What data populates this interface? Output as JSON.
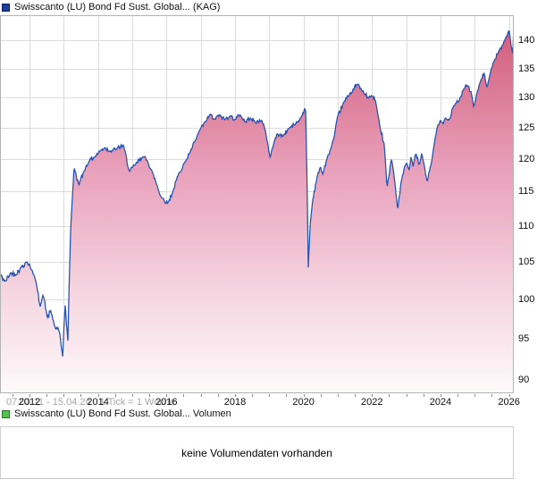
{
  "price_chart": {
    "legend": {
      "label": "Swisscanto (LU) Bond Fd Sust. Global... (KAG)",
      "swatch_fill": "#1d3a9e",
      "swatch_border": "#0c1e66"
    },
    "range_label": "07.03.11 - 15.04.26",
    "tick_label": "1 Tick = 1 Woche"
  },
  "volume_chart": {
    "legend": {
      "label": "Swisscanto (LU) Bond Fd Sust. Global... Volumen",
      "swatch_fill": "#54bf50",
      "swatch_border": "#1f7d23"
    },
    "message": "keine Volumendaten vorhanden"
  },
  "chart_data": {
    "type": "area",
    "title": "Swisscanto (LU) Bond Fd Sust. Global... (KAG)",
    "legend_position": "top-left",
    "grid": true,
    "x_axis": {
      "start_label": "07.03.11",
      "end_label": "15.04.26",
      "tick_unit": "1 Woche",
      "domain_years": [
        2011.14,
        2026.145
      ],
      "gridline_years": [
        2012,
        2013,
        2014,
        2015,
        2016,
        2017,
        2018,
        2019,
        2020,
        2021,
        2022,
        2023,
        2024,
        2025,
        2026
      ],
      "labeled_years": [
        2012,
        2014,
        2016,
        2018,
        2020,
        2022,
        2024,
        2026
      ],
      "minor_tick_step_years": 0.5
    },
    "y_axis": {
      "scale": "logarithmic",
      "side": "right",
      "tick_values": [
        90,
        95,
        100,
        105,
        110,
        115,
        120,
        125,
        130,
        135,
        140
      ],
      "visible_range": [
        88.3,
        144
      ]
    },
    "series": [
      {
        "name": "Swisscanto (LU) Bond Fd Sust. Global... (KAG)",
        "line_color": "#2351b0",
        "fill_gradient": [
          "#cf5776",
          "#e89fb9",
          "#f5d3df",
          "#fefafb"
        ],
        "anchor_points": [
          [
            2011.14,
            103.2
          ],
          [
            2011.3,
            102.3
          ],
          [
            2011.45,
            103.5
          ],
          [
            2011.6,
            103.2
          ],
          [
            2011.75,
            104.2
          ],
          [
            2011.92,
            105.0
          ],
          [
            2012.08,
            103.8
          ],
          [
            2012.2,
            102.0
          ],
          [
            2012.31,
            99.0
          ],
          [
            2012.4,
            100.6
          ],
          [
            2012.52,
            97.6
          ],
          [
            2012.62,
            98.5
          ],
          [
            2012.75,
            96.3
          ],
          [
            2012.88,
            95.8
          ],
          [
            2012.97,
            92.7
          ],
          [
            2013.04,
            99.4
          ],
          [
            2013.12,
            94.6
          ],
          [
            2013.2,
            109.3
          ],
          [
            2013.3,
            118.7
          ],
          [
            2013.44,
            116.0
          ],
          [
            2013.6,
            118.2
          ],
          [
            2013.75,
            119.8
          ],
          [
            2013.9,
            120.3
          ],
          [
            2014.05,
            121.2
          ],
          [
            2014.2,
            121.8
          ],
          [
            2014.35,
            121.2
          ],
          [
            2014.55,
            121.6
          ],
          [
            2014.74,
            122.2
          ],
          [
            2014.92,
            118.0
          ],
          [
            2015.1,
            119.2
          ],
          [
            2015.31,
            120.4
          ],
          [
            2015.45,
            119.6
          ],
          [
            2015.6,
            117.8
          ],
          [
            2015.84,
            114.2
          ],
          [
            2016.04,
            113.3
          ],
          [
            2016.2,
            115.2
          ],
          [
            2016.36,
            117.8
          ],
          [
            2016.55,
            119.6
          ],
          [
            2016.7,
            121.2
          ],
          [
            2016.85,
            123.0
          ],
          [
            2017.0,
            124.9
          ],
          [
            2017.15,
            126.0
          ],
          [
            2017.27,
            127.2
          ],
          [
            2017.4,
            126.3
          ],
          [
            2017.55,
            127.1
          ],
          [
            2017.7,
            126.3
          ],
          [
            2017.85,
            126.9
          ],
          [
            2018.0,
            126.3
          ],
          [
            2018.15,
            127.1
          ],
          [
            2018.3,
            125.9
          ],
          [
            2018.45,
            126.6
          ],
          [
            2018.6,
            125.8
          ],
          [
            2018.78,
            126.2
          ],
          [
            2018.9,
            124.2
          ],
          [
            2019.02,
            120.2
          ],
          [
            2019.15,
            122.8
          ],
          [
            2019.23,
            124.0
          ],
          [
            2019.4,
            123.6
          ],
          [
            2019.55,
            124.8
          ],
          [
            2019.75,
            125.5
          ],
          [
            2019.9,
            126.4
          ],
          [
            2020.06,
            128.4
          ],
          [
            2020.1,
            118.0
          ],
          [
            2020.14,
            104.2
          ],
          [
            2020.2,
            110.5
          ],
          [
            2020.27,
            113.8
          ],
          [
            2020.4,
            117.3
          ],
          [
            2020.5,
            118.8
          ],
          [
            2020.56,
            117.6
          ],
          [
            2020.68,
            119.9
          ],
          [
            2020.79,
            121.5
          ],
          [
            2020.9,
            123.6
          ],
          [
            2021.0,
            126.9
          ],
          [
            2021.18,
            129.2
          ],
          [
            2021.35,
            130.6
          ],
          [
            2021.58,
            132.3
          ],
          [
            2021.7,
            131.2
          ],
          [
            2021.89,
            129.9
          ],
          [
            2022.0,
            130.3
          ],
          [
            2022.1,
            129.5
          ],
          [
            2022.23,
            125.2
          ],
          [
            2022.36,
            122.3
          ],
          [
            2022.44,
            115.6
          ],
          [
            2022.57,
            120.1
          ],
          [
            2022.65,
            117.2
          ],
          [
            2022.75,
            112.4
          ],
          [
            2022.88,
            117.3
          ],
          [
            2023.01,
            119.4
          ],
          [
            2023.08,
            118.2
          ],
          [
            2023.14,
            120.3
          ],
          [
            2023.2,
            118.8
          ],
          [
            2023.28,
            120.9
          ],
          [
            2023.38,
            119.0
          ],
          [
            2023.45,
            120.9
          ],
          [
            2023.52,
            119.2
          ],
          [
            2023.61,
            116.4
          ],
          [
            2023.74,
            119.5
          ],
          [
            2023.85,
            123.5
          ],
          [
            2023.92,
            125.4
          ],
          [
            2024.0,
            126.2
          ],
          [
            2024.08,
            125.6
          ],
          [
            2024.13,
            126.6
          ],
          [
            2024.25,
            126.2
          ],
          [
            2024.39,
            128.6
          ],
          [
            2024.55,
            129.5
          ],
          [
            2024.65,
            131.2
          ],
          [
            2024.78,
            132.1
          ],
          [
            2024.9,
            130.8
          ],
          [
            2024.97,
            128.4
          ],
          [
            2025.08,
            131.0
          ],
          [
            2025.15,
            132.5
          ],
          [
            2025.28,
            134.2
          ],
          [
            2025.36,
            131.6
          ],
          [
            2025.45,
            134.1
          ],
          [
            2025.54,
            136.0
          ],
          [
            2025.7,
            138.1
          ],
          [
            2025.82,
            139.2
          ],
          [
            2025.88,
            140.1
          ],
          [
            2026.0,
            142.0
          ],
          [
            2026.1,
            137.6
          ],
          [
            2026.145,
            140.8
          ]
        ]
      }
    ],
    "volume": {
      "available": false,
      "message": "keine Volumendaten vorhanden"
    },
    "style": {
      "grid_color": "#dcdcdc",
      "border_color": "#b3b3b3",
      "tick_color": "#8a8a8a",
      "background": "#ffffff"
    }
  }
}
